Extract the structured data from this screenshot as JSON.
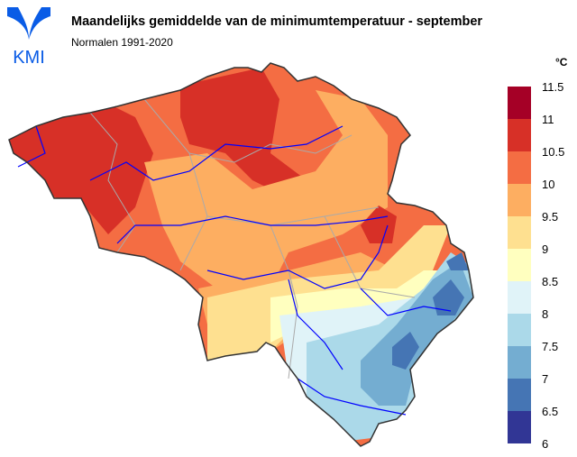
{
  "header": {
    "title": "Maandelijks gemiddelde van de minimumtemperatuur - september",
    "subtitle": "Normalen 1991-2020",
    "logo_text": "KMI"
  },
  "legend": {
    "unit": "°C",
    "ticks": [
      "11.5",
      "11",
      "10.5",
      "10",
      "9.5",
      "9",
      "8.5",
      "8",
      "7.5",
      "7",
      "6.5",
      "6"
    ],
    "classes": [
      {
        "range": [
          11,
          11.5
        ],
        "color": "#a50026"
      },
      {
        "range": [
          10.5,
          11
        ],
        "color": "#d73027"
      },
      {
        "range": [
          10,
          10.5
        ],
        "color": "#f46d43"
      },
      {
        "range": [
          9.5,
          10
        ],
        "color": "#fdae61"
      },
      {
        "range": [
          9,
          9.5
        ],
        "color": "#fee090"
      },
      {
        "range": [
          8.5,
          9
        ],
        "color": "#ffffbf"
      },
      {
        "range": [
          8,
          8.5
        ],
        "color": "#e0f3f8"
      },
      {
        "range": [
          7.5,
          8
        ],
        "color": "#abd9e9"
      },
      {
        "range": [
          7,
          7.5
        ],
        "color": "#74add1"
      },
      {
        "range": [
          6.5,
          7
        ],
        "color": "#4575b4"
      },
      {
        "range": [
          6,
          6.5
        ],
        "color": "#313695"
      }
    ]
  },
  "colors": {
    "logo": "#0a5ce6",
    "rivers": "#0000ff",
    "borders": "#aaaaaa",
    "outline": "#333333"
  }
}
